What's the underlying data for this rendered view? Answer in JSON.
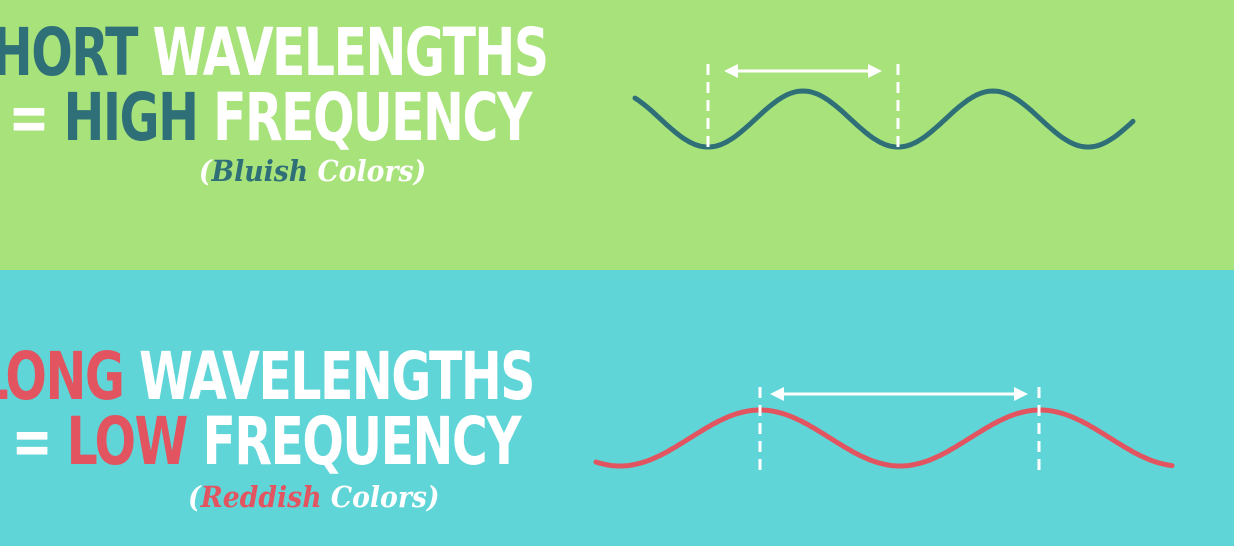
{
  "colors": {
    "top_background": "#a8e27b",
    "bottom_background": "#5fd5d8",
    "blue_accent": "#2f6f77",
    "red_accent": "#e2545f",
    "white": "#ffffff"
  },
  "short_panel": {
    "line1": {
      "accent": "SHORT",
      "rest": " WAVELENGTHS"
    },
    "line2": {
      "prefix": "= ",
      "accent": "HIGH",
      "rest": " FREQUENCY"
    },
    "note": {
      "open": "(",
      "accent": "Bluish",
      "rest": " Colors)"
    }
  },
  "long_panel": {
    "line1": {
      "accent": "LONG",
      "rest": " WAVELENGTHS"
    },
    "line2": {
      "prefix": "= ",
      "accent": "LOW",
      "rest": " FREQUENCY"
    },
    "note": {
      "open": "(",
      "accent": "Reddish",
      "rest": " Colors)"
    }
  },
  "waves": {
    "short": {
      "wavelength_marker": "white double arrow",
      "color": "#2f6f77"
    },
    "long": {
      "wavelength_marker": "white double arrow",
      "color": "#e2545f"
    }
  }
}
